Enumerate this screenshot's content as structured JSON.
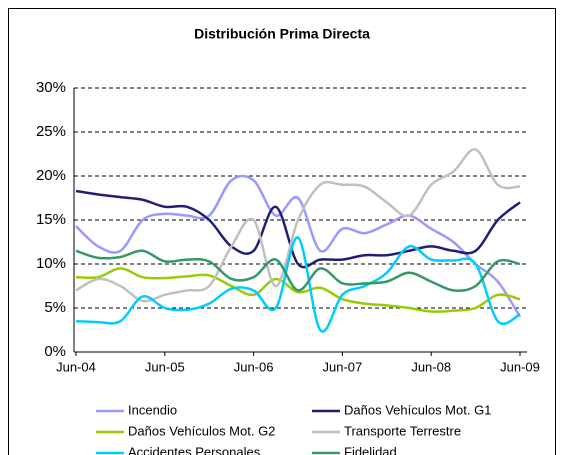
{
  "chart_data": {
    "type": "line",
    "title": "Distribución Prima Directa",
    "categories": [
      "Jun-04",
      null,
      null,
      null,
      "Jun-05",
      null,
      null,
      null,
      "Jun-06",
      null,
      null,
      null,
      "Jun-07",
      null,
      null,
      null,
      "Jun-08",
      null,
      null,
      null,
      "Jun-09"
    ],
    "ylim": [
      0,
      30
    ],
    "yticks": [
      {
        "value": 0,
        "label": "0%"
      },
      {
        "value": 5,
        "label": "5%"
      },
      {
        "value": 10,
        "label": "10%"
      },
      {
        "value": 15,
        "label": "15%"
      },
      {
        "value": 20,
        "label": "20%"
      },
      {
        "value": 25,
        "label": "25%"
      },
      {
        "value": 30,
        "label": "30%"
      }
    ],
    "grid": true,
    "legend": "bottom",
    "series": [
      {
        "name": "Incendio",
        "color": "#9999ff",
        "values": [
          14.3,
          12,
          11.5,
          15,
          15.7,
          15.5,
          15.5,
          19.5,
          19.5,
          15.5,
          17.5,
          11.5,
          14,
          13.5,
          14.5,
          15.5,
          14,
          12.5,
          10,
          8,
          4
        ]
      },
      {
        "name": "Daños Vehículos Mot. G1",
        "color": "#1f1f7a",
        "values": [
          18.3,
          17.9,
          17.6,
          17.3,
          16.5,
          16.5,
          15,
          12,
          11.5,
          16.5,
          10,
          10.5,
          10.5,
          11,
          11,
          11.5,
          12,
          11.5,
          11.5,
          15,
          17
        ]
      },
      {
        "name": "Daños Vehículos Mot. G2",
        "color": "#99cc00",
        "values": [
          8.5,
          8.5,
          9.5,
          8.5,
          8.4,
          8.6,
          8.7,
          7.5,
          6.5,
          8.3,
          6.8,
          7.3,
          6,
          5.5,
          5.3,
          5,
          4.6,
          4.7,
          5,
          6.5,
          6
        ]
      },
      {
        "name": "Transporte Terrestre",
        "color": "#c0c0c0",
        "values": [
          7,
          8.3,
          7.5,
          5.8,
          6.5,
          7,
          7.5,
          12,
          15,
          7.5,
          15,
          19,
          19,
          18.8,
          17,
          15.5,
          19,
          20.5,
          23,
          19,
          18.8
        ]
      },
      {
        "name": "Accidentes Personales",
        "color": "#00ccff",
        "values": [
          3.5,
          3.4,
          3.5,
          6.3,
          5,
          4.8,
          5.5,
          7.2,
          7,
          5,
          13,
          2.5,
          6.5,
          7.5,
          9,
          12,
          10.5,
          10.4,
          10,
          3.5,
          4.3
        ]
      },
      {
        "name": "Fidelidad",
        "color": "#339966",
        "values": [
          11.5,
          10.7,
          10.8,
          11.5,
          10.3,
          10.5,
          10.3,
          8.3,
          8.5,
          10.5,
          7,
          9.5,
          7.8,
          7.8,
          8,
          9,
          8,
          7,
          7.5,
          10.3,
          10
        ]
      }
    ]
  }
}
